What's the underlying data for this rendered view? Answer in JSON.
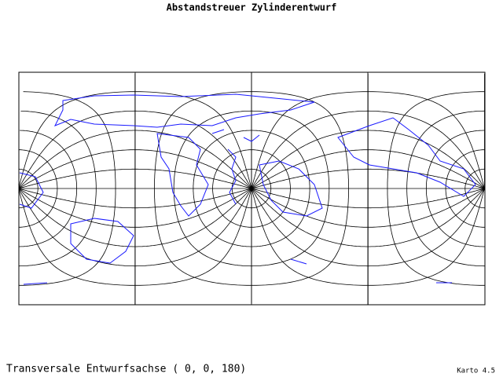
{
  "title": "Abstandstreuer Zylinderentwurf",
  "footer": {
    "caption": "Transversale Entwurfsachse ( 0, 0, 180)",
    "version": "Karto 4.5"
  }
}
